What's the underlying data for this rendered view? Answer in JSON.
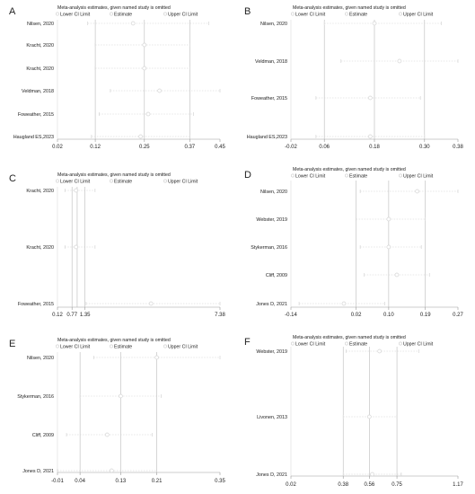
{
  "panels_meta": {
    "title": "Meta-analysis estimates, given named study is omitted",
    "legend": [
      "Lower CI Limit",
      "Estimate",
      "Upper CI Limit"
    ]
  },
  "chart_data": [
    {
      "panel": "A",
      "type": "forest",
      "studies": [
        "Nilsen, 2020",
        "Kracht, 2020",
        "Kracht, 2020",
        "Veldman, 2018",
        "Foweather, 2015",
        "Haugland ES,2023"
      ],
      "estimate": [
        0.22,
        0.25,
        0.25,
        0.29,
        0.26,
        0.24
      ],
      "lower": [
        0.1,
        0.12,
        0.12,
        0.16,
        0.13,
        0.11
      ],
      "upper": [
        0.42,
        0.37,
        0.37,
        0.45,
        0.38,
        0.37
      ],
      "combined": {
        "lower": 0.12,
        "estimate": 0.25,
        "upper": 0.37
      },
      "ticks": [
        "0.02",
        "0.12",
        "0.25",
        "0.37",
        "0.45"
      ],
      "xlim": [
        0.02,
        0.45
      ]
    },
    {
      "panel": "B",
      "type": "forest",
      "studies": [
        "Nilsen, 2020",
        "Veldman, 2018",
        "Foweather, 2015",
        "Haugland ES,2023"
      ],
      "estimate": [
        0.18,
        0.24,
        0.17,
        0.17
      ],
      "lower": [
        0.06,
        0.1,
        0.04,
        0.04
      ],
      "upper": [
        0.34,
        0.38,
        0.29,
        0.3
      ],
      "combined": {
        "lower": 0.06,
        "estimate": 0.18,
        "upper": 0.3
      },
      "ticks": [
        "-0.02",
        "0.06",
        "0.18",
        "0.30",
        "0.38"
      ],
      "xlim": [
        -0.02,
        0.38
      ]
    },
    {
      "panel": "C",
      "type": "forest",
      "studies": [
        "Kracht, 2020",
        "Kracht, 2020",
        "Foweather, 2015"
      ],
      "estimate": [
        0.95,
        0.95,
        4.3
      ],
      "lower": [
        0.45,
        0.45,
        1.4
      ],
      "upper": [
        1.8,
        1.8,
        7.38
      ],
      "combined": {
        "lower": 0.77,
        "estimate": 1.0,
        "upper": 1.35
      },
      "ticks": [
        "0.12",
        "0.77",
        "1.35",
        "7.38"
      ],
      "xlim": [
        0.12,
        7.38
      ]
    },
    {
      "panel": "D",
      "type": "forest",
      "studies": [
        "Nilsen, 2020",
        "Webster, 2019",
        "Stykerman, 2016",
        "Cliff, 2009",
        "Jones D, 2021"
      ],
      "estimate": [
        0.17,
        0.1,
        0.1,
        0.12,
        -0.01
      ],
      "lower": [
        0.03,
        0.02,
        0.03,
        0.04,
        -0.12
      ],
      "upper": [
        0.27,
        0.19,
        0.18,
        0.2,
        0.09
      ],
      "combined": {
        "lower": 0.02,
        "estimate": 0.1,
        "upper": 0.19
      },
      "ticks": [
        "-0.14",
        "0.02",
        "0.10",
        "0.19",
        "0.27"
      ],
      "xlim": [
        -0.14,
        0.27
      ]
    },
    {
      "panel": "E",
      "type": "forest",
      "studies": [
        "Nilsen, 2020",
        "Stykerman, 2016",
        "Cliff, 2009",
        "Jones D, 2021"
      ],
      "estimate": [
        0.21,
        0.13,
        0.1,
        0.11
      ],
      "lower": [
        0.07,
        0.04,
        0.01,
        -0.01
      ],
      "upper": [
        0.35,
        0.22,
        0.2,
        0.21
      ],
      "combined": {
        "lower": 0.04,
        "estimate": 0.13,
        "upper": 0.21
      },
      "ticks": [
        "-0.01",
        "0.04",
        "0.13",
        "0.21",
        "0.35"
      ],
      "xlim": [
        -0.01,
        0.35
      ]
    },
    {
      "panel": "F",
      "type": "forest",
      "studies": [
        "Webster, 2019",
        "Livonen, 2013",
        "Jones D, 2021"
      ],
      "estimate": [
        0.63,
        0.56,
        0.58
      ],
      "lower": [
        0.4,
        0.38,
        0.38
      ],
      "upper": [
        0.9,
        0.75,
        0.78
      ],
      "combined": {
        "lower": 0.38,
        "estimate": 0.56,
        "upper": 0.75
      },
      "ticks": [
        "0.02",
        "0.38",
        "0.56",
        "0.75",
        "1.17"
      ],
      "xlim": [
        0.02,
        1.17
      ]
    }
  ],
  "colors": {
    "line": "#cfcfcf",
    "text": "#222222",
    "guide": "#bbbbbb",
    "marker": "#d4d4d4"
  }
}
